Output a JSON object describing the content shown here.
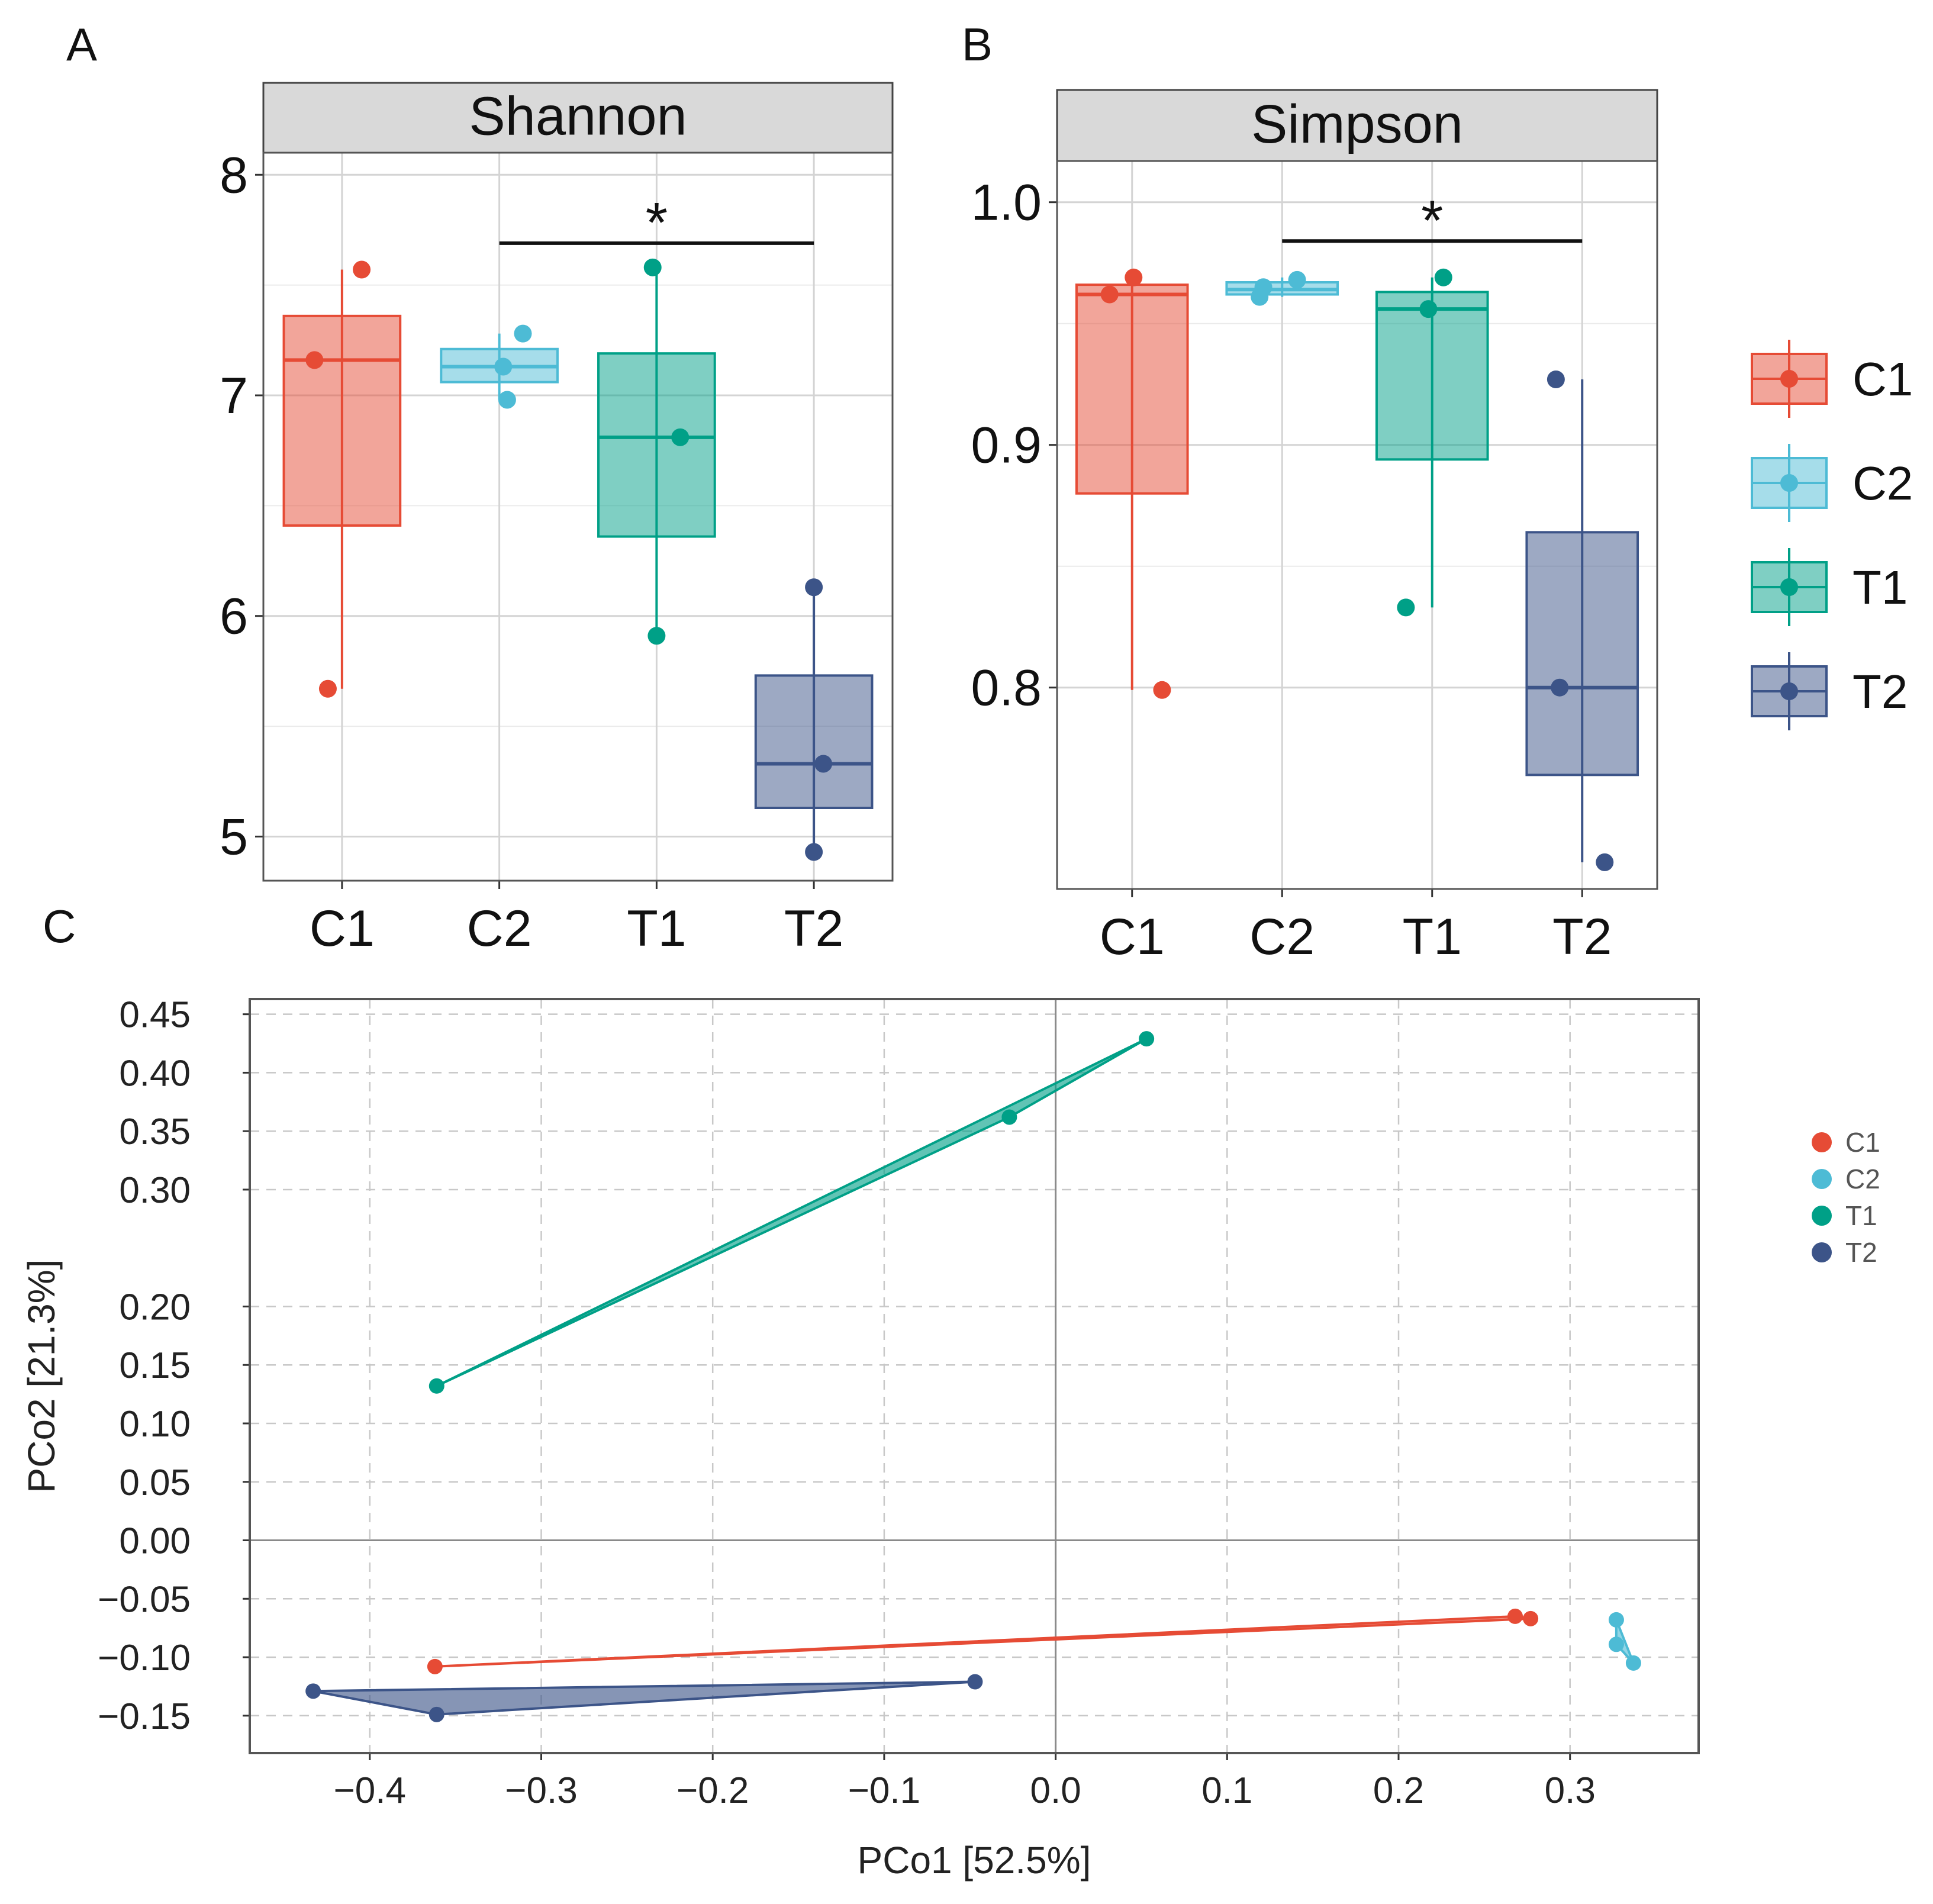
{
  "panel_labels": [
    "A",
    "B",
    "C"
  ],
  "colors": {
    "C1": "#E64B35",
    "C2": "#4DBBD5",
    "T1": "#00A087",
    "T2": "#3C5488",
    "strip_bg": "#D9D9D9",
    "grid": "#D4D4D4",
    "frame": "#444444"
  },
  "chart_data": [
    {
      "type": "box",
      "panel": "A",
      "title": "Shannon",
      "categories": [
        "C1",
        "C2",
        "T1",
        "T2"
      ],
      "ylim": [
        4.8,
        8.1
      ],
      "y_ticks": [
        5,
        6,
        7,
        8
      ],
      "y_tick_labels": [
        "5",
        "6",
        "7",
        "8"
      ],
      "boxes": [
        {
          "group": "C1",
          "lower_whisker": 5.67,
          "q1": 6.41,
          "median": 7.16,
          "q3": 7.36,
          "upper_whisker": 7.57
        },
        {
          "group": "C2",
          "lower_whisker": 6.98,
          "q1": 7.06,
          "median": 7.13,
          "q3": 7.21,
          "upper_whisker": 7.28
        },
        {
          "group": "T1",
          "lower_whisker": 5.91,
          "q1": 6.36,
          "median": 6.81,
          "q3": 7.19,
          "upper_whisker": 7.58
        },
        {
          "group": "T2",
          "lower_whisker": 4.93,
          "q1": 5.13,
          "median": 5.33,
          "q3": 5.73,
          "upper_whisker": 6.13
        }
      ],
      "points": [
        {
          "group": "C1",
          "values": [
            7.16,
            7.57,
            5.67
          ],
          "jitter": [
            -0.35,
            0.25,
            -0.18
          ]
        },
        {
          "group": "C2",
          "values": [
            7.13,
            7.28,
            6.98
          ],
          "jitter": [
            0.05,
            0.3,
            0.1
          ]
        },
        {
          "group": "T1",
          "values": [
            7.58,
            6.81,
            5.91
          ],
          "jitter": [
            -0.05,
            0.3,
            0.0
          ]
        },
        {
          "group": "T2",
          "values": [
            6.13,
            5.33,
            4.93
          ],
          "jitter": [
            0.0,
            0.12,
            0.0
          ]
        }
      ],
      "significance": {
        "from": "C2",
        "to": "T2",
        "y": 7.69,
        "label": "*"
      }
    },
    {
      "type": "box",
      "panel": "B",
      "title": "Simpson",
      "categories": [
        "C1",
        "C2",
        "T1",
        "T2"
      ],
      "ylim": [
        0.717,
        1.017
      ],
      "y_ticks": [
        0.8,
        0.9,
        1.0
      ],
      "y_tick_labels": [
        "0.8",
        "0.9",
        "1.0"
      ],
      "boxes": [
        {
          "group": "C1",
          "lower_whisker": 0.799,
          "q1": 0.88,
          "median": 0.962,
          "q3": 0.966,
          "upper_whisker": 0.969
        },
        {
          "group": "C2",
          "lower_whisker": 0.961,
          "q1": 0.962,
          "median": 0.964,
          "q3": 0.967,
          "upper_whisker": 0.969
        },
        {
          "group": "T1",
          "lower_whisker": 0.833,
          "q1": 0.894,
          "median": 0.956,
          "q3": 0.963,
          "upper_whisker": 0.969
        },
        {
          "group": "T2",
          "lower_whisker": 0.728,
          "q1": 0.764,
          "median": 0.8,
          "q3": 0.864,
          "upper_whisker": 0.927
        }
      ],
      "points": [
        {
          "group": "C1",
          "values": [
            0.962,
            0.969,
            0.799
          ],
          "jitter": [
            -0.3,
            0.02,
            0.4
          ]
        },
        {
          "group": "C2",
          "values": [
            0.961,
            0.965,
            0.968
          ],
          "jitter": [
            -0.3,
            -0.25,
            0.2
          ]
        },
        {
          "group": "T1",
          "values": [
            0.956,
            0.969,
            0.833
          ],
          "jitter": [
            -0.05,
            0.15,
            -0.35
          ]
        },
        {
          "group": "T2",
          "values": [
            0.927,
            0.8,
            0.728
          ],
          "jitter": [
            -0.35,
            -0.3,
            0.3
          ]
        }
      ],
      "significance": {
        "from": "C2",
        "to": "T2",
        "y": 0.984,
        "label": "*"
      }
    },
    {
      "type": "scatter",
      "panel": "C",
      "xlabel": "PCo1 [52.5%]",
      "ylabel": "PCo2 [21.3%]",
      "xlim": [
        -0.47,
        0.375
      ],
      "ylim": [
        -0.182,
        0.463
      ],
      "x_ticks": [
        -0.4,
        -0.3,
        -0.2,
        -0.1,
        0.0,
        0.1,
        0.2,
        0.3
      ],
      "x_tick_labels": [
        "−0.4",
        "−0.3",
        "−0.2",
        "−0.1",
        "0.0",
        "0.1",
        "0.2",
        "0.3"
      ],
      "y_ticks": [
        -0.15,
        -0.1,
        -0.05,
        0.0,
        0.05,
        0.1,
        0.15,
        0.2,
        0.3,
        0.35,
        0.4,
        0.45
      ],
      "y_tick_labels": [
        "−0.15",
        "−0.10",
        "−0.05",
        "0.00",
        "0.05",
        "0.10",
        "0.15",
        "0.20",
        "0.30",
        "0.35",
        "0.40",
        "0.45"
      ],
      "series": [
        {
          "name": "C1",
          "points": [
            [
              -0.362,
              -0.108
            ],
            [
              0.268,
              -0.065
            ],
            [
              0.277,
              -0.067
            ]
          ]
        },
        {
          "name": "C2",
          "points": [
            [
              0.327,
              -0.068
            ],
            [
              0.327,
              -0.089
            ],
            [
              0.337,
              -0.105
            ]
          ]
        },
        {
          "name": "T1",
          "points": [
            [
              -0.361,
              0.132
            ],
            [
              -0.027,
              0.362
            ],
            [
              0.053,
              0.429
            ]
          ]
        },
        {
          "name": "T2",
          "points": [
            [
              -0.433,
              -0.129
            ],
            [
              -0.361,
              -0.149
            ],
            [
              -0.047,
              -0.121
            ]
          ]
        }
      ]
    }
  ],
  "legends": {
    "top": [
      "C1",
      "C2",
      "T1",
      "T2"
    ],
    "bottom": [
      "C1",
      "C2",
      "T1",
      "T2"
    ]
  }
}
